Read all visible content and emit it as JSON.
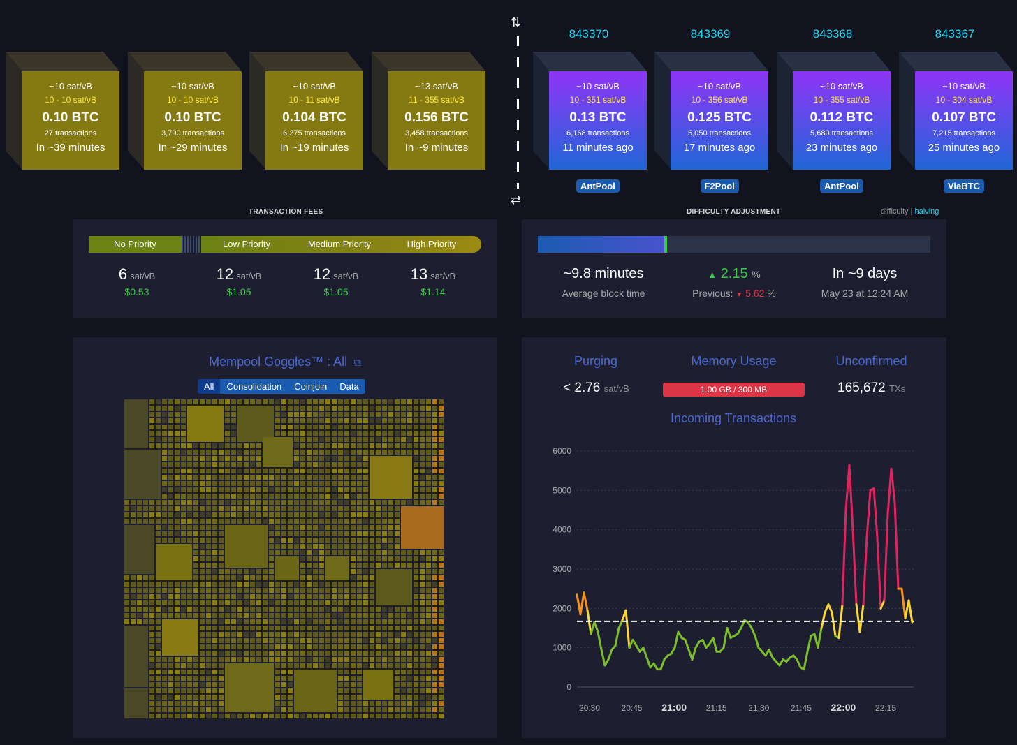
{
  "mempool_blocks": [
    {
      "median": "~10 sat/vB",
      "range": "10 - 10 sat/vB",
      "fees": "0.10 BTC",
      "tx": "27 transactions",
      "time": "In ~39 minutes"
    },
    {
      "median": "~10 sat/vB",
      "range": "10 - 10 sat/vB",
      "fees": "0.10 BTC",
      "tx": "3,790 transactions",
      "time": "In ~29 minutes"
    },
    {
      "median": "~10 sat/vB",
      "range": "10 - 11 sat/vB",
      "fees": "0.104 BTC",
      "tx": "6,275 transactions",
      "time": "In ~19 minutes"
    },
    {
      "median": "~13 sat/vB",
      "range": "11 - 355 sat/vB",
      "fees": "0.156 BTC",
      "tx": "3,458 transactions",
      "time": "In ~9 minutes"
    }
  ],
  "mined_blocks": [
    {
      "height": "843370",
      "median": "~10 sat/vB",
      "range": "10 - 351 sat/vB",
      "fees": "0.13 BTC",
      "tx": "6,168 transactions",
      "time": "11 minutes ago",
      "pool": "AntPool"
    },
    {
      "height": "843369",
      "median": "~10 sat/vB",
      "range": "10 - 356 sat/vB",
      "fees": "0.125 BTC",
      "tx": "5,050 transactions",
      "time": "17 minutes ago",
      "pool": "F2Pool"
    },
    {
      "height": "843368",
      "median": "~10 sat/vB",
      "range": "10 - 355 sat/vB",
      "fees": "0.112 BTC",
      "tx": "5,680 transactions",
      "time": "23 minutes ago",
      "pool": "AntPool"
    },
    {
      "height": "843367",
      "median": "~10 sat/vB",
      "range": "10 - 304 sat/vB",
      "fees": "0.107 BTC",
      "tx": "7,215 transactions",
      "time": "25 minutes ago",
      "pool": "ViaBTC"
    }
  ],
  "icons": {
    "top": "swap-vertical-icon",
    "bottom": "swap-horizontal-icon"
  },
  "fees": {
    "label": "TRANSACTION FEES",
    "priorities": [
      "No Priority",
      "Low Priority",
      "Medium Priority",
      "High Priority"
    ],
    "items": [
      {
        "value": "6",
        "unit": "sat/vB",
        "usd": "$0.53"
      },
      {
        "value": "12",
        "unit": "sat/vB",
        "usd": "$1.05"
      },
      {
        "value": "12",
        "unit": "sat/vB",
        "usd": "$1.05"
      },
      {
        "value": "13",
        "unit": "sat/vB",
        "usd": "$1.14"
      }
    ]
  },
  "difficulty": {
    "label": "DIFFICULTY ADJUSTMENT",
    "link_difficulty": "difficulty",
    "link_sep": "|",
    "link_halving": "halving",
    "progress_fraction": 0.33,
    "avg_block_time": "~9.8 minutes",
    "avg_block_time_label": "Average block time",
    "change": "2.15",
    "change_unit": "%",
    "previous_label": "Previous:",
    "previous_value": "5.62",
    "previous_unit": "%",
    "eta": "In ~9 days",
    "eta_date": "May 23 at 12:24 AM"
  },
  "goggles": {
    "title": "Mempool Goggles™ : All",
    "filters": [
      "All",
      "Consolidation",
      "Coinjoin",
      "Data"
    ],
    "active_filter": "All"
  },
  "stats": {
    "purging_label": "Purging",
    "purging_value": "< 2.76",
    "purging_unit": "sat/vB",
    "memory_label": "Memory Usage",
    "memory_value": "1.00 GB / 300 MB",
    "unconfirmed_label": "Unconfirmed",
    "unconfirmed_value": "165,672",
    "unconfirmed_unit": "TXs",
    "incoming_label": "Incoming Transactions"
  },
  "colors": {
    "positive": "#3bcc49",
    "negative": "#dc3545",
    "accent": "#4a68d1",
    "height": "#1bd8f4"
  },
  "chart_data": {
    "type": "line",
    "title": "Incoming Transactions",
    "x_ticks": [
      "20:30",
      "20:45",
      "21:00",
      "21:15",
      "21:30",
      "21:45",
      "22:00",
      "22:15"
    ],
    "bold_ticks": [
      "21:00",
      "22:00"
    ],
    "y_ticks": [
      0,
      1000,
      2000,
      3000,
      4000,
      5000,
      6000
    ],
    "ylim": [
      0,
      6000
    ],
    "threshold": 1670,
    "series": [
      {
        "values": [
          2350,
          1850,
          2400,
          1950,
          1350,
          1650,
          1400,
          950,
          550,
          700,
          950,
          1050,
          1500,
          1700,
          1950,
          1000,
          1200,
          1050,
          900,
          1000,
          750,
          500,
          600,
          450,
          450,
          700,
          800,
          850,
          1000,
          1400,
          1250,
          1200,
          950,
          700,
          1000,
          1150,
          1200,
          1000,
          1100,
          1250,
          900,
          900,
          1000,
          1500,
          1250,
          1300,
          1350,
          1500,
          1700,
          1650,
          1500,
          1300,
          1000,
          900,
          800,
          950,
          750,
          650,
          550,
          700,
          650,
          750,
          800,
          700,
          500,
          450,
          900,
          1300,
          1350,
          1000,
          1500,
          1900,
          2100,
          1900,
          1300,
          1250,
          2100,
          4500,
          5650,
          4000,
          2100,
          1400,
          2100,
          3800,
          5000,
          5050,
          3800,
          2000,
          2200,
          4400,
          5550,
          4700,
          2500,
          2500,
          1750,
          2200,
          1650
        ]
      }
    ]
  }
}
